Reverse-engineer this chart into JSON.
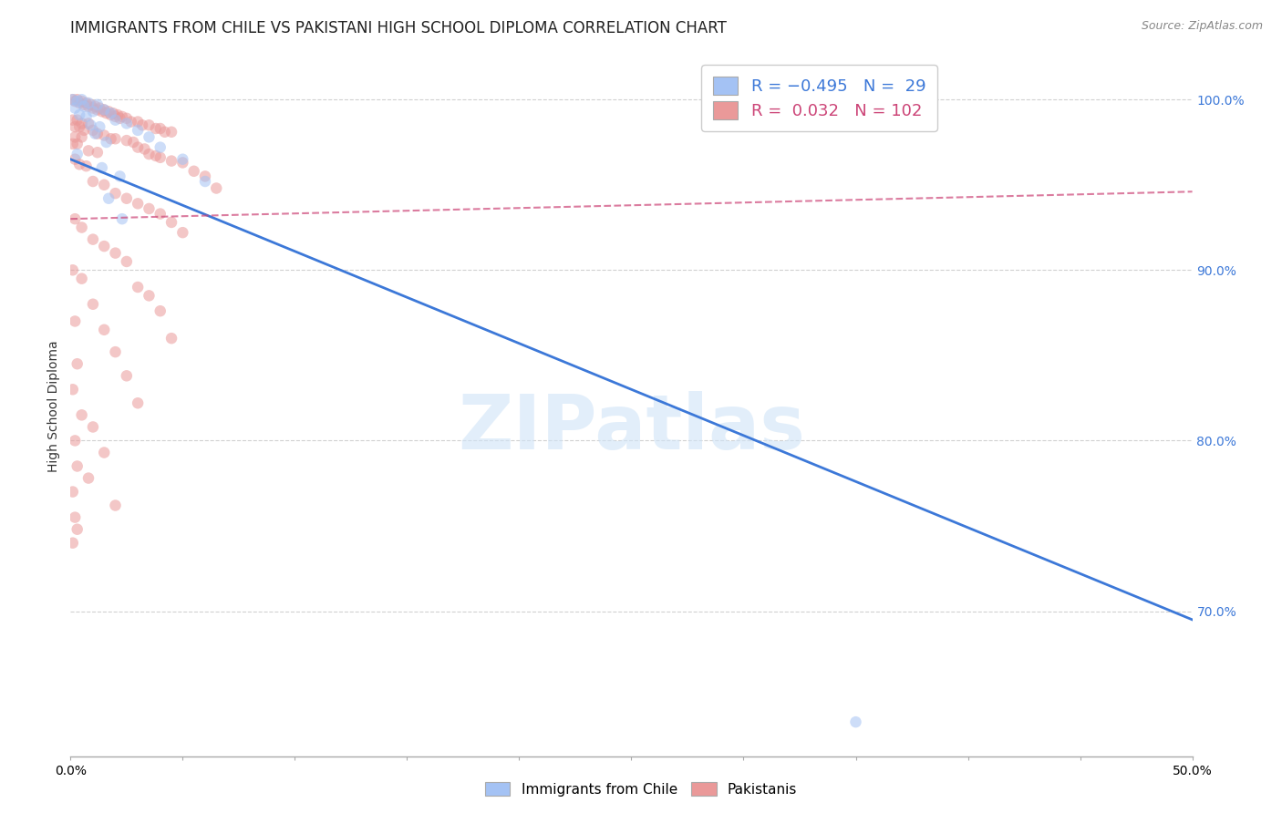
{
  "title": "IMMIGRANTS FROM CHILE VS PAKISTANI HIGH SCHOOL DIPLOMA CORRELATION CHART",
  "source": "Source: ZipAtlas.com",
  "ylabel": "High School Diploma",
  "ytick_labels": [
    "70.0%",
    "80.0%",
    "90.0%",
    "100.0%"
  ],
  "ytick_values": [
    0.7,
    0.8,
    0.9,
    1.0
  ],
  "xlim": [
    0.0,
    0.5
  ],
  "ylim": [
    0.615,
    1.025
  ],
  "blue_line_x": [
    0.0,
    0.5
  ],
  "blue_line_y": [
    0.965,
    0.695
  ],
  "pink_line_x": [
    0.0,
    0.5
  ],
  "pink_line_y": [
    0.93,
    0.946
  ],
  "blue_scatter": [
    [
      0.001,
      1.0
    ],
    [
      0.005,
      1.0
    ],
    [
      0.003,
      0.999
    ],
    [
      0.008,
      0.998
    ],
    [
      0.012,
      0.997
    ],
    [
      0.006,
      0.996
    ],
    [
      0.002,
      0.995
    ],
    [
      0.015,
      0.994
    ],
    [
      0.01,
      0.993
    ],
    [
      0.018,
      0.992
    ],
    [
      0.004,
      0.991
    ],
    [
      0.007,
      0.99
    ],
    [
      0.02,
      0.988
    ],
    [
      0.025,
      0.986
    ],
    [
      0.009,
      0.985
    ],
    [
      0.013,
      0.984
    ],
    [
      0.03,
      0.982
    ],
    [
      0.011,
      0.98
    ],
    [
      0.035,
      0.978
    ],
    [
      0.016,
      0.975
    ],
    [
      0.04,
      0.972
    ],
    [
      0.003,
      0.968
    ],
    [
      0.05,
      0.965
    ],
    [
      0.014,
      0.96
    ],
    [
      0.022,
      0.955
    ],
    [
      0.06,
      0.952
    ],
    [
      0.017,
      0.942
    ],
    [
      0.023,
      0.93
    ],
    [
      0.35,
      0.635
    ]
  ],
  "pink_scatter": [
    [
      0.001,
      1.0
    ],
    [
      0.003,
      1.0
    ],
    [
      0.002,
      0.999
    ],
    [
      0.005,
      0.999
    ],
    [
      0.004,
      0.998
    ],
    [
      0.007,
      0.998
    ],
    [
      0.006,
      0.997
    ],
    [
      0.009,
      0.997
    ],
    [
      0.008,
      0.996
    ],
    [
      0.011,
      0.996
    ],
    [
      0.01,
      0.995
    ],
    [
      0.013,
      0.995
    ],
    [
      0.012,
      0.994
    ],
    [
      0.015,
      0.994
    ],
    [
      0.014,
      0.993
    ],
    [
      0.017,
      0.993
    ],
    [
      0.016,
      0.992
    ],
    [
      0.019,
      0.992
    ],
    [
      0.018,
      0.991
    ],
    [
      0.021,
      0.991
    ],
    [
      0.02,
      0.99
    ],
    [
      0.023,
      0.99
    ],
    [
      0.022,
      0.989
    ],
    [
      0.025,
      0.989
    ],
    [
      0.001,
      0.988
    ],
    [
      0.003,
      0.988
    ],
    [
      0.027,
      0.987
    ],
    [
      0.03,
      0.987
    ],
    [
      0.005,
      0.986
    ],
    [
      0.008,
      0.986
    ],
    [
      0.032,
      0.985
    ],
    [
      0.035,
      0.985
    ],
    [
      0.002,
      0.984
    ],
    [
      0.004,
      0.984
    ],
    [
      0.038,
      0.983
    ],
    [
      0.04,
      0.983
    ],
    [
      0.006,
      0.982
    ],
    [
      0.01,
      0.982
    ],
    [
      0.042,
      0.981
    ],
    [
      0.045,
      0.981
    ],
    [
      0.012,
      0.98
    ],
    [
      0.015,
      0.979
    ],
    [
      0.002,
      0.978
    ],
    [
      0.005,
      0.978
    ],
    [
      0.018,
      0.977
    ],
    [
      0.02,
      0.977
    ],
    [
      0.025,
      0.976
    ],
    [
      0.028,
      0.975
    ],
    [
      0.001,
      0.974
    ],
    [
      0.003,
      0.974
    ],
    [
      0.03,
      0.972
    ],
    [
      0.033,
      0.971
    ],
    [
      0.008,
      0.97
    ],
    [
      0.012,
      0.969
    ],
    [
      0.035,
      0.968
    ],
    [
      0.038,
      0.967
    ],
    [
      0.04,
      0.966
    ],
    [
      0.002,
      0.965
    ],
    [
      0.045,
      0.964
    ],
    [
      0.05,
      0.963
    ],
    [
      0.004,
      0.962
    ],
    [
      0.007,
      0.961
    ],
    [
      0.055,
      0.958
    ],
    [
      0.06,
      0.955
    ],
    [
      0.01,
      0.952
    ],
    [
      0.015,
      0.95
    ],
    [
      0.065,
      0.948
    ],
    [
      0.02,
      0.945
    ],
    [
      0.025,
      0.942
    ],
    [
      0.03,
      0.939
    ],
    [
      0.035,
      0.936
    ],
    [
      0.04,
      0.933
    ],
    [
      0.002,
      0.93
    ],
    [
      0.045,
      0.928
    ],
    [
      0.005,
      0.925
    ],
    [
      0.05,
      0.922
    ],
    [
      0.01,
      0.918
    ],
    [
      0.015,
      0.914
    ],
    [
      0.02,
      0.91
    ],
    [
      0.025,
      0.905
    ],
    [
      0.001,
      0.9
    ],
    [
      0.005,
      0.895
    ],
    [
      0.03,
      0.89
    ],
    [
      0.035,
      0.885
    ],
    [
      0.01,
      0.88
    ],
    [
      0.04,
      0.876
    ],
    [
      0.002,
      0.87
    ],
    [
      0.015,
      0.865
    ],
    [
      0.045,
      0.86
    ],
    [
      0.02,
      0.852
    ],
    [
      0.003,
      0.845
    ],
    [
      0.025,
      0.838
    ],
    [
      0.001,
      0.83
    ],
    [
      0.03,
      0.822
    ],
    [
      0.005,
      0.815
    ],
    [
      0.01,
      0.808
    ],
    [
      0.002,
      0.8
    ],
    [
      0.015,
      0.793
    ],
    [
      0.003,
      0.785
    ],
    [
      0.008,
      0.778
    ],
    [
      0.001,
      0.77
    ],
    [
      0.02,
      0.762
    ],
    [
      0.002,
      0.755
    ],
    [
      0.003,
      0.748
    ],
    [
      0.001,
      0.74
    ]
  ],
  "blue_color": "#a4c2f4",
  "pink_color": "#ea9999",
  "blue_line_color": "#3c78d8",
  "pink_line_color": "#cc4477",
  "background_color": "#ffffff",
  "grid_color": "#cccccc",
  "title_fontsize": 12,
  "axis_label_fontsize": 10,
  "tick_fontsize": 10,
  "marker_size": 9,
  "marker_alpha": 0.55
}
